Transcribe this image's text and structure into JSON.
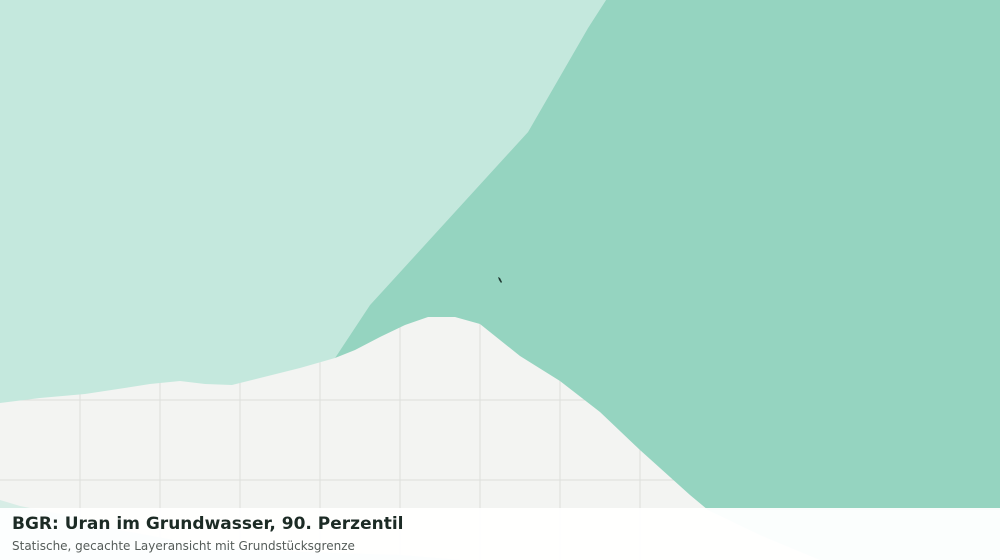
{
  "map": {
    "layer": "uranium-groundwater-p90",
    "colors": {
      "background": "#f3f4f2",
      "grid": "#dcdedb",
      "class_low": "#c4e8dd",
      "class_high": "#95d4c0",
      "parcel_marker": "#1f3a32"
    }
  },
  "caption": {
    "title": "BGR: Uran im Grundwasser, 90. Perzentil",
    "subtitle": "Statische, gecachte Layeransicht mit Grundstücksgrenze"
  }
}
